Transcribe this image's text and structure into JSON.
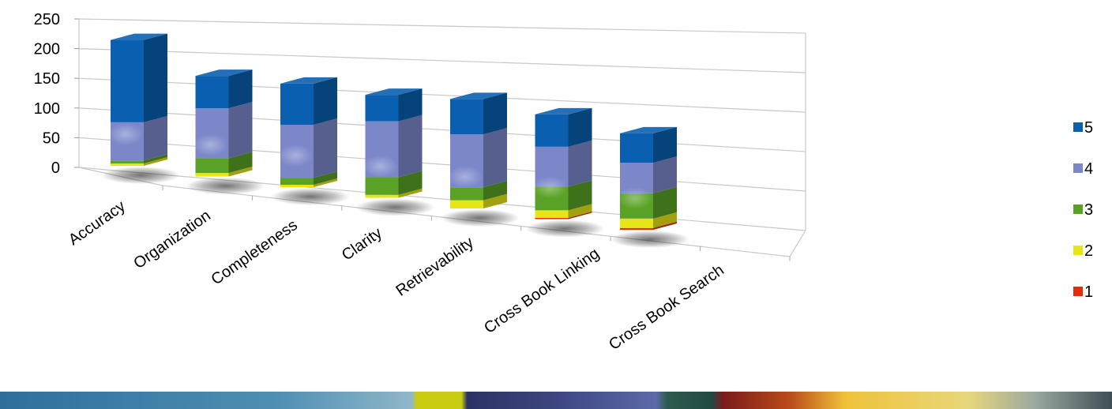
{
  "chart_data": {
    "type": "bar",
    "stacked": true,
    "three_d": true,
    "title": "",
    "xlabel": "",
    "ylabel": "",
    "categories": [
      "Accuracy",
      "Organization",
      "Completeness",
      "Clarity",
      "Retrievability",
      "Cross Book Linking",
      "Cross Book Search"
    ],
    "yticks": [
      "0",
      "50",
      "100",
      "150",
      "200",
      "250"
    ],
    "ylim": [
      0,
      250
    ],
    "grid": true,
    "legend_position": "right",
    "series": [
      {
        "name": "1",
        "color": "#e8290b",
        "values": [
          0,
          0,
          0,
          0,
          0,
          2,
          3
        ]
      },
      {
        "name": "2",
        "color": "#e6e617",
        "values": [
          4,
          6,
          4,
          5,
          14,
          13,
          16
        ]
      },
      {
        "name": "3",
        "color": "#5aa226",
        "values": [
          5,
          25,
          12,
          30,
          22,
          40,
          43
        ]
      },
      {
        "name": "4",
        "color": "#7b87c9",
        "values": [
          65,
          85,
          90,
          95,
          90,
          68,
          52
        ]
      },
      {
        "name": "5",
        "color": "#0a5fb0",
        "values": [
          140,
          55,
          70,
          45,
          60,
          55,
          50
        ]
      }
    ],
    "legend_order": [
      "5",
      "4",
      "3",
      "2",
      "1"
    ]
  }
}
